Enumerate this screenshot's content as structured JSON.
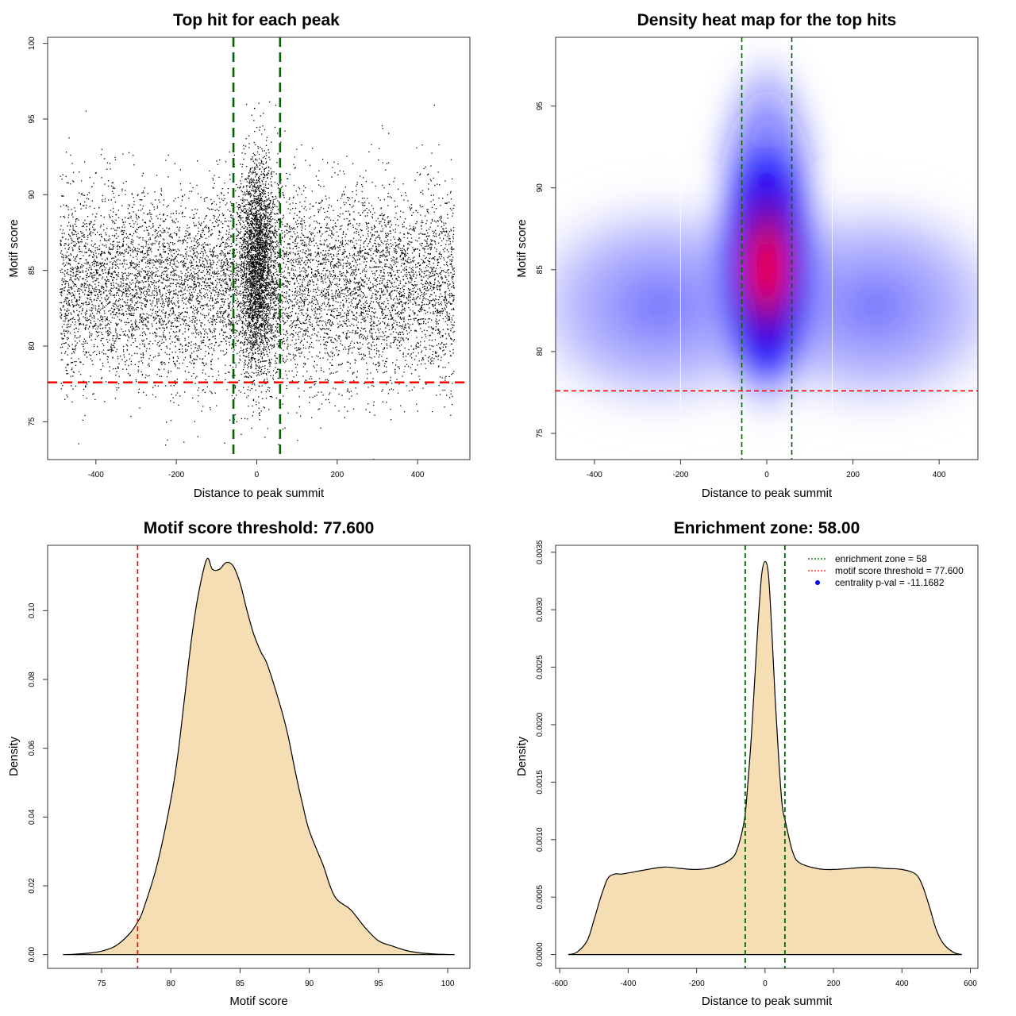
{
  "chart_data": [
    {
      "id": "scatter",
      "type": "scatter",
      "title": "Top hit for each peak",
      "xlabel": "Distance to peak summit",
      "ylabel": "Motif score",
      "xlim": [
        -520,
        530
      ],
      "ylim": [
        72.5,
        100.4
      ],
      "xticks": [
        -400,
        -200,
        0,
        200,
        400
      ],
      "yticks": [
        75,
        80,
        85,
        90,
        95,
        100
      ],
      "point_color": "#000000",
      "background_points": {
        "x_range": [
          -490,
          490
        ],
        "y_center": 84,
        "y_sd": 3.2,
        "n": 9000
      },
      "central_points": {
        "x_center": 0,
        "x_sd": 22,
        "y_center": 85.5,
        "y_sd": 3.5,
        "n": 2800
      },
      "vlines": [
        -58,
        58
      ],
      "hline": 77.6,
      "vline_color": "#006400",
      "hline_color": "#ff0000"
    },
    {
      "id": "heatmap",
      "type": "heatmap",
      "title": "Density heat map for the top hits",
      "xlabel": "Distance to peak summit",
      "ylabel": "Motif score",
      "xlim": [
        -490,
        490
      ],
      "ylim": [
        73.4,
        99.2
      ],
      "xticks": [
        -400,
        -200,
        0,
        200,
        400
      ],
      "yticks": [
        75,
        80,
        85,
        90,
        95
      ],
      "peak": {
        "x": 0,
        "y": 85
      },
      "vlines": [
        -58,
        58
      ],
      "hline": 77.6,
      "colors": [
        "#ffffff",
        "#0000ff",
        "#ff0000"
      ],
      "vline_color": "#006400",
      "hline_color": "#ff0000"
    },
    {
      "id": "density-score",
      "type": "area",
      "title": "Motif score threshold: 77.600",
      "xlabel": "Motif score",
      "ylabel": "Density",
      "xlim": [
        71.1,
        101.6
      ],
      "ylim": [
        -0.004,
        0.119
      ],
      "xticks": [
        75,
        80,
        85,
        90,
        95,
        100
      ],
      "yticks": [
        0.0,
        0.02,
        0.04,
        0.06,
        0.08,
        0.1
      ],
      "ytick_labels": [
        "0.00",
        "0.02",
        "0.04",
        "0.06",
        "0.08",
        "0.10"
      ],
      "x": [
        72.2,
        73,
        74,
        75,
        76,
        77,
        77.6,
        78,
        79,
        80,
        80.5,
        81,
        81.5,
        82,
        82.6,
        83,
        83.5,
        84,
        84.5,
        85,
        85.5,
        86,
        86.5,
        87,
        88,
        88.5,
        89,
        89.5,
        90,
        91,
        91.5,
        92,
        93,
        94,
        95,
        96,
        97,
        98,
        99,
        100,
        100.5
      ],
      "y": [
        0.0,
        0.0001,
        0.0004,
        0.001,
        0.0025,
        0.006,
        0.0095,
        0.013,
        0.026,
        0.045,
        0.058,
        0.075,
        0.092,
        0.105,
        0.115,
        0.112,
        0.112,
        0.114,
        0.113,
        0.108,
        0.1,
        0.093,
        0.088,
        0.084,
        0.071,
        0.063,
        0.053,
        0.044,
        0.036,
        0.026,
        0.02,
        0.016,
        0.013,
        0.008,
        0.004,
        0.0025,
        0.0012,
        0.0005,
        0.0002,
        5e-05,
        0.0
      ],
      "fill": "#f5deb3",
      "vline": 77.6,
      "vline_color": "#ff0000"
    },
    {
      "id": "density-distance",
      "type": "area",
      "title": "Enrichment zone: 58.00",
      "xlabel": "Distance to peak summit",
      "ylabel": "Density",
      "xlim": [
        -612,
        622
      ],
      "ylim": [
        -0.00012,
        0.00356
      ],
      "xticks": [
        -600,
        -400,
        -200,
        0,
        200,
        400,
        600
      ],
      "yticks": [
        0.0,
        0.0005,
        0.001,
        0.0015,
        0.002,
        0.0025,
        0.003,
        0.0035
      ],
      "ytick_labels": [
        "0.0000",
        "0.0005",
        "0.0010",
        "0.0015",
        "0.0020",
        "0.0025",
        "0.0030",
        "0.0035"
      ],
      "x": [
        -575,
        -550,
        -520,
        -500,
        -480,
        -460,
        -440,
        -420,
        -400,
        -300,
        -250,
        -200,
        -150,
        -100,
        -80,
        -60,
        -50,
        -40,
        -30,
        -20,
        -10,
        0,
        10,
        20,
        30,
        40,
        50,
        60,
        80,
        100,
        150,
        200,
        300,
        350,
        400,
        440,
        460,
        480,
        500,
        520,
        550,
        575
      ],
      "y": [
        0.0,
        2e-05,
        0.00012,
        0.0003,
        0.0005,
        0.00066,
        0.0007,
        0.0007,
        0.00071,
        0.00076,
        0.00075,
        0.00074,
        0.00076,
        0.00083,
        0.00093,
        0.00118,
        0.0015,
        0.0019,
        0.0024,
        0.0029,
        0.0033,
        0.00342,
        0.0033,
        0.0028,
        0.0022,
        0.0017,
        0.0013,
        0.00115,
        0.0009,
        0.0008,
        0.00075,
        0.00074,
        0.00076,
        0.00075,
        0.00074,
        0.0007,
        0.0006,
        0.00042,
        0.00022,
        0.0001,
        2e-05,
        0.0
      ],
      "fill": "#f5deb3",
      "vlines": [
        -58,
        58
      ],
      "vline_color": "#006400",
      "legend": {
        "position": "top-right",
        "entries": [
          {
            "label": "enrichment zone = 58",
            "color": "#006400",
            "symbol": "dotted-line"
          },
          {
            "label": "motif score threshold = 77.600",
            "color": "#ff0000",
            "symbol": "dotted-line"
          },
          {
            "label": "centrality p-val = -11.1682",
            "color": "#0000ff",
            "symbol": "point"
          }
        ]
      }
    }
  ]
}
